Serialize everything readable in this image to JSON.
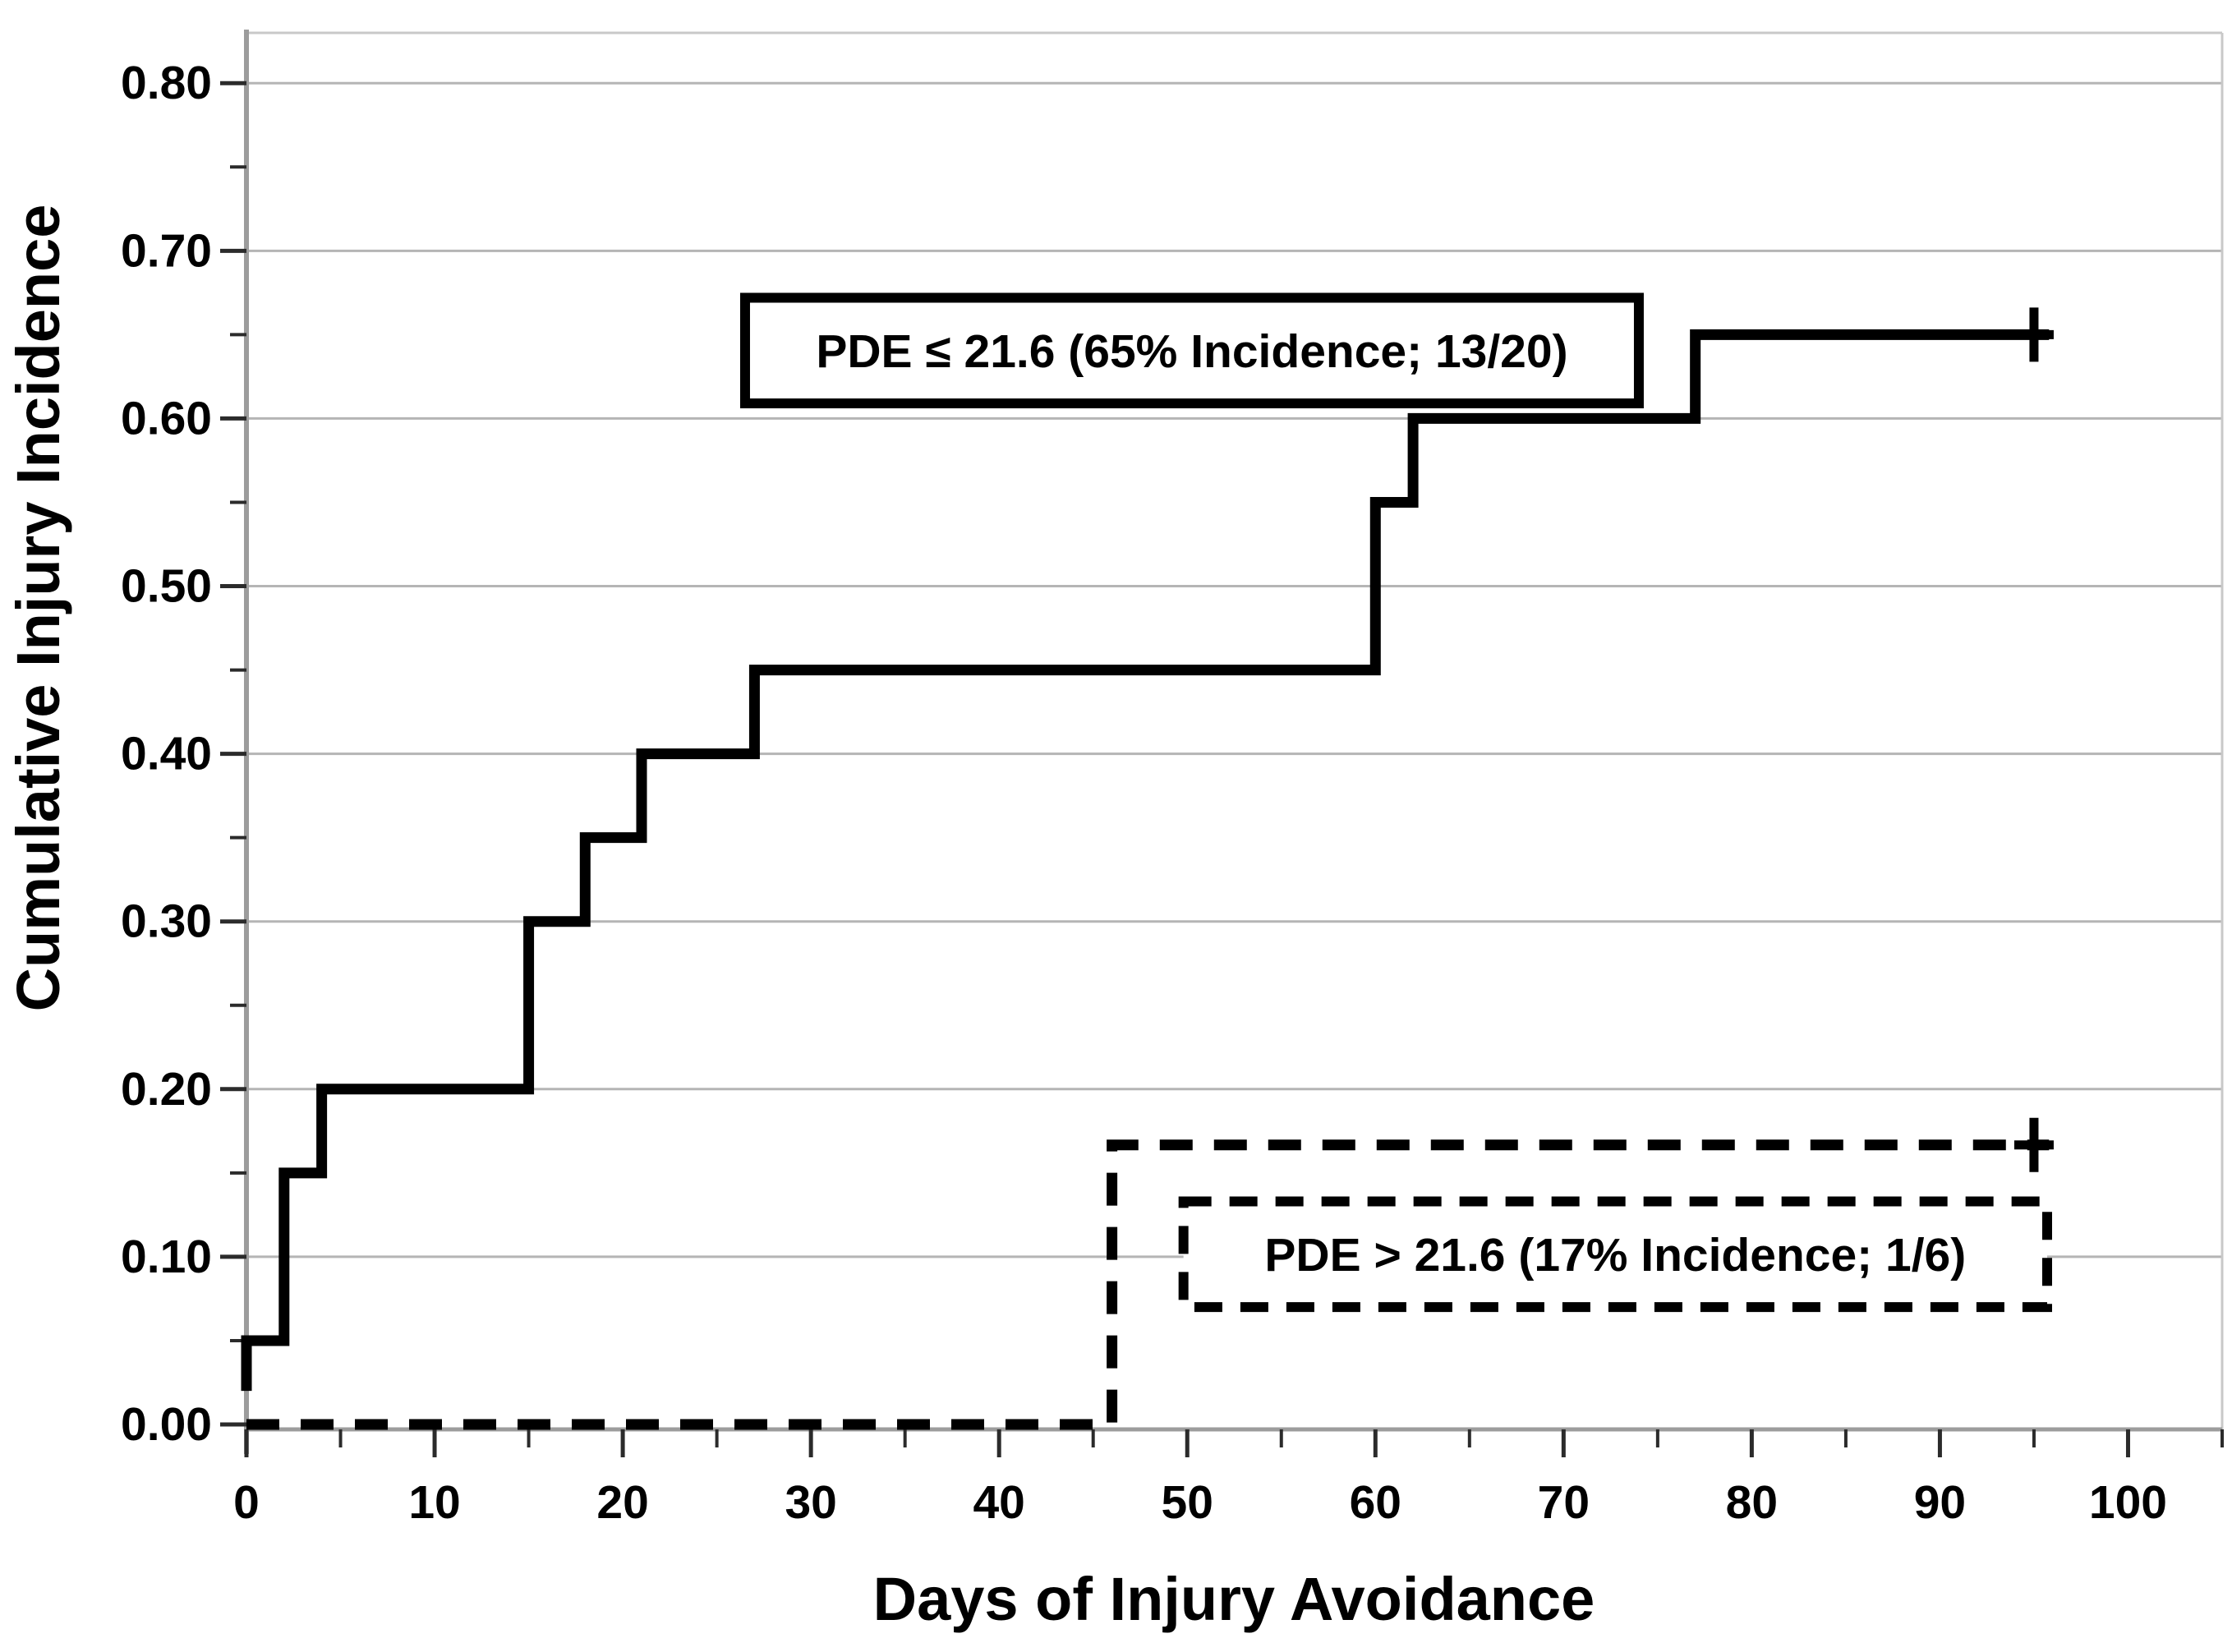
{
  "chart_data": {
    "type": "line",
    "subtype": "cumulative-incidence-step-plot",
    "title": "",
    "xlabel": "Days of Injury Avoidance",
    "ylabel": "Cumulative Injury Incidence",
    "xlim": [
      0,
      105
    ],
    "ylim": [
      0,
      0.83
    ],
    "grid": "horizontal-major",
    "legend_position": "annotation-boxes-inside-plot",
    "x_major_ticks": [
      0,
      10,
      20,
      30,
      40,
      50,
      60,
      70,
      80,
      90,
      100
    ],
    "x_major_tick_labels": [
      "0",
      "10",
      "20",
      "30",
      "40",
      "50",
      "60",
      "70",
      "80",
      "90",
      "100"
    ],
    "x_minor_ticks": [
      5,
      15,
      25,
      35,
      45,
      55,
      65,
      75,
      85,
      95,
      105
    ],
    "y_major_ticks": [
      0,
      0.1,
      0.2,
      0.3,
      0.4,
      0.5,
      0.6,
      0.7,
      0.8
    ],
    "y_major_tick_labels": [
      "0.00",
      "0.10",
      "0.20",
      "0.30",
      "0.40",
      "0.50",
      "0.60",
      "0.70",
      "0.80"
    ],
    "y_minor_ticks": [
      0.05,
      0.15,
      0.25,
      0.35,
      0.45,
      0.55,
      0.65,
      0.75
    ],
    "series": [
      {
        "name": "PDE ≤ 21.6",
        "label": "PDE ≤ 21.6 (65% Incidence; 13/20)",
        "incidence": "65%",
        "events": "13/20",
        "line_style": "solid",
        "color": "#000000",
        "step_points": [
          [
            0,
            0.02
          ],
          [
            0,
            0.05
          ],
          [
            2,
            0.05
          ],
          [
            2,
            0.15
          ],
          [
            4,
            0.15
          ],
          [
            4,
            0.2
          ],
          [
            15,
            0.2
          ],
          [
            15,
            0.3
          ],
          [
            18,
            0.3
          ],
          [
            18,
            0.35
          ],
          [
            21,
            0.35
          ],
          [
            21,
            0.4
          ],
          [
            27,
            0.4
          ],
          [
            27,
            0.45
          ],
          [
            60,
            0.45
          ],
          [
            60,
            0.55
          ],
          [
            62,
            0.55
          ],
          [
            62,
            0.6
          ],
          [
            77,
            0.6
          ],
          [
            77,
            0.65
          ],
          [
            95.8,
            0.65
          ]
        ],
        "censor_marks": [
          [
            95,
            0.65
          ]
        ],
        "label_box": {
          "x1": 26.5,
          "x2": 74.0,
          "y1": 0.609,
          "y2": 0.672,
          "border": "solid"
        }
      },
      {
        "name": "PDE > 21.6",
        "label": "PDE > 21.6 (17% Incidence; 1/6)",
        "incidence": "17%",
        "events": "1/6",
        "line_style": "dashed",
        "color": "#000000",
        "step_points": [
          [
            0,
            0
          ],
          [
            46,
            0
          ],
          [
            46,
            0.1667
          ],
          [
            95.8,
            0.1667
          ]
        ],
        "censor_marks": [
          [
            95,
            0.1667
          ]
        ],
        "label_box": {
          "x1": 49.8,
          "x2": 95.7,
          "y1": 0.07,
          "y2": 0.133,
          "border": "dashed"
        }
      }
    ]
  },
  "colors": {
    "background": "#ffffff",
    "grid": "#b5b5b5",
    "axis": "#9c9c9c",
    "frame": "#c8c8c8",
    "tick": "#2b2b2b",
    "text": "#000000",
    "series": "#000000"
  }
}
